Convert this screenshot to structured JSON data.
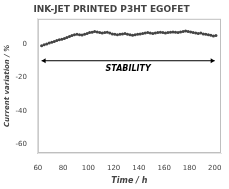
{
  "chart_data": {
    "type": "line",
    "title": "INK-JET PRINTED P3HT EGOFET",
    "xlabel": "Time / h",
    "ylabel": "Current variation / %",
    "x": [
      63,
      65,
      67,
      69,
      71,
      73,
      75,
      77,
      79,
      81,
      83,
      85,
      87,
      89,
      91,
      93,
      95,
      97,
      99,
      101,
      103,
      105,
      107,
      109,
      111,
      113,
      115,
      117,
      119,
      121,
      123,
      125,
      127,
      129,
      131,
      133,
      135,
      137,
      139,
      141,
      143,
      145,
      147,
      149,
      151,
      153,
      155,
      157,
      159,
      161,
      163,
      165,
      167,
      169,
      171,
      173,
      175,
      177,
      179,
      181,
      183,
      185,
      187,
      189,
      191,
      193,
      195,
      197,
      199,
      201
    ],
    "values": [
      -1,
      -0.5,
      0,
      0.5,
      1,
      1.5,
      2,
      2.5,
      2.8,
      3.2,
      3.8,
      4.5,
      5,
      5.5,
      5.8,
      5.5,
      5.3,
      5.8,
      6.2,
      6.8,
      7,
      7.5,
      7.2,
      6.8,
      6.5,
      6.8,
      7,
      6.5,
      6.0,
      5.8,
      5.5,
      5.8,
      6.0,
      6.2,
      5.8,
      5.5,
      5.2,
      5.5,
      5.8,
      6.0,
      6.2,
      6.5,
      6.8,
      6.5,
      6.2,
      6.5,
      6.8,
      7.0,
      6.8,
      6.5,
      6.8,
      7.0,
      7.2,
      7.0,
      6.8,
      7.2,
      7.5,
      7.8,
      7.5,
      7.2,
      6.8,
      6.5,
      6.2,
      6.5,
      6.0,
      5.8,
      5.5,
      5.2,
      4.8,
      5.0
    ],
    "color": "#444444",
    "marker": "circle",
    "xlim": [
      60,
      205
    ],
    "ylim": [
      -65,
      15
    ],
    "xticks": [
      60,
      80,
      100,
      120,
      140,
      160,
      180,
      200
    ],
    "yticks": [
      -60,
      -40,
      -20,
      0
    ],
    "grid": false,
    "annotations": [
      {
        "text": "STABILITY",
        "x": [
          63,
          200
        ],
        "y": -10
      }
    ]
  }
}
